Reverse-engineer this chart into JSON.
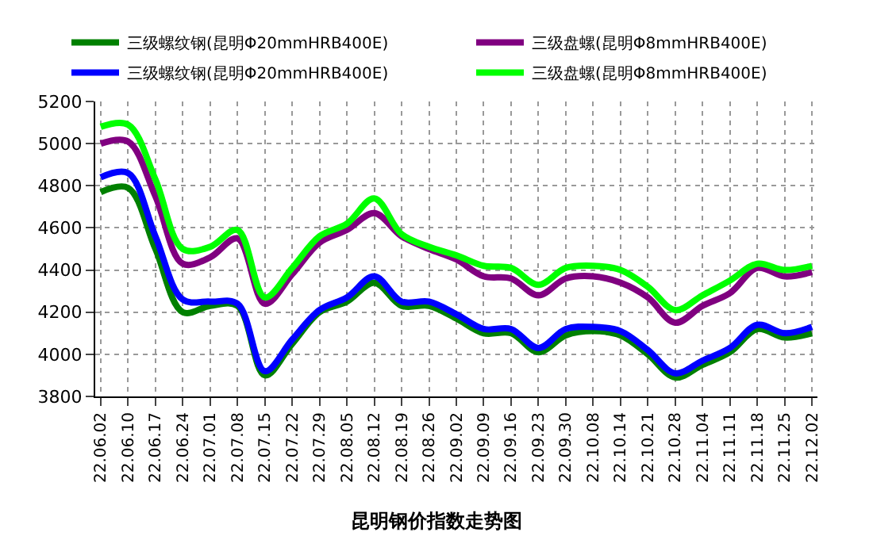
{
  "chart_data": {
    "type": "line",
    "title": "昆明钢价指数走势图",
    "categories": [
      "22.06.02",
      "22.06.10",
      "22.06.17",
      "22.06.24",
      "22.07.01",
      "22.07.08",
      "22.07.15",
      "22.07.22",
      "22.07.29",
      "22.08.05",
      "22.08.12",
      "22.08.19",
      "22.08.26",
      "22.09.02",
      "22.09.09",
      "22.09.16",
      "22.09.23",
      "22.09.30",
      "22.10.08",
      "22.10.14",
      "22.10.21",
      "22.10.28",
      "22.11.04",
      "22.11.11",
      "22.11.18",
      "22.11.25",
      "22.12.02"
    ],
    "series": [
      {
        "name": "三级螺纹钢(昆明Φ20mmHRB400E)",
        "color": "#008000",
        "values": [
          4770,
          4790,
          4500,
          4200,
          4230,
          4230,
          3900,
          4050,
          4200,
          4250,
          4340,
          4230,
          4230,
          4170,
          4100,
          4100,
          4010,
          4090,
          4110,
          4090,
          4000,
          3890,
          3950,
          4010,
          4120,
          4080,
          4100
        ]
      },
      {
        "name": "三级盘螺(昆明Φ8mmHRB400E)",
        "color": "#800080",
        "values": [
          5000,
          5010,
          4750,
          4430,
          4460,
          4550,
          4240,
          4380,
          4530,
          4590,
          4670,
          4560,
          4500,
          4450,
          4370,
          4360,
          4280,
          4360,
          4370,
          4340,
          4270,
          4150,
          4230,
          4290,
          4410,
          4370,
          4390
        ]
      },
      {
        "name": "三级螺纹钢(昆明Φ20mmHRB400E)",
        "color": "#0000ff",
        "values": [
          4840,
          4860,
          4560,
          4260,
          4250,
          4240,
          3920,
          4070,
          4210,
          4270,
          4370,
          4250,
          4250,
          4190,
          4120,
          4120,
          4030,
          4120,
          4130,
          4110,
          4020,
          3910,
          3970,
          4030,
          4140,
          4100,
          4130
        ]
      },
      {
        "name": "三级盘螺(昆明Φ8mmHRB400E)",
        "color": "#00ff00",
        "values": [
          5080,
          5090,
          4830,
          4500,
          4510,
          4590,
          4270,
          4410,
          4560,
          4620,
          4740,
          4570,
          4510,
          4470,
          4420,
          4410,
          4330,
          4410,
          4420,
          4400,
          4320,
          4210,
          4280,
          4350,
          4430,
          4400,
          4420
        ]
      }
    ],
    "ylim": [
      3800,
      5200
    ],
    "yticks": [
      3800,
      4000,
      4200,
      4400,
      4600,
      4800,
      5000,
      5200
    ],
    "grid": true,
    "legend": "top",
    "marker": "none",
    "line_style": "solid"
  }
}
